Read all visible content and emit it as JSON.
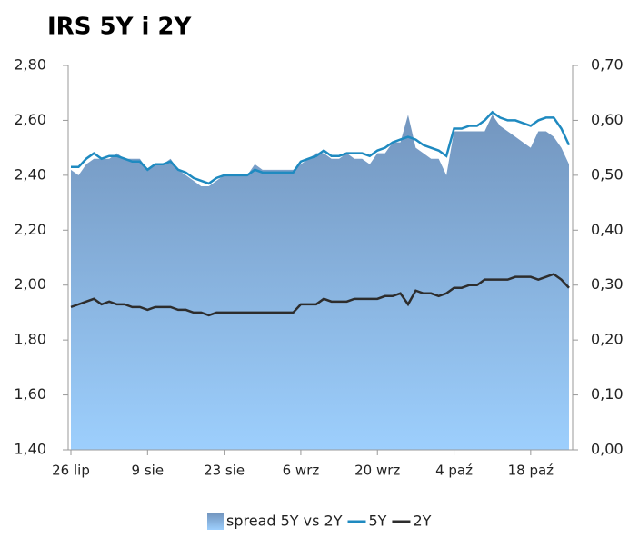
{
  "chart_data": {
    "type": "line",
    "title": "IRS 5Y i 2Y",
    "categories": [
      "26 lip",
      null,
      null,
      null,
      null,
      null,
      null,
      null,
      null,
      null,
      "9 sie",
      null,
      null,
      null,
      null,
      null,
      null,
      null,
      null,
      null,
      "23 sie",
      null,
      null,
      null,
      null,
      null,
      null,
      null,
      null,
      null,
      "6 wrz",
      null,
      null,
      null,
      null,
      null,
      null,
      null,
      null,
      null,
      "20 wrz",
      null,
      null,
      null,
      null,
      null,
      null,
      null,
      null,
      null,
      "4 paź",
      null,
      null,
      null,
      null,
      null,
      null,
      null,
      null,
      null,
      "18 paź",
      null,
      null,
      null,
      null,
      null
    ],
    "series": [
      {
        "name": "spread 5Y vs 2Y",
        "type": "area",
        "axis": "y2",
        "color": "#7396bf",
        "values": [
          0.51,
          0.5,
          0.52,
          0.53,
          0.53,
          0.53,
          0.54,
          0.53,
          0.53,
          0.53,
          0.51,
          0.52,
          0.52,
          0.53,
          0.51,
          0.5,
          0.49,
          0.48,
          0.48,
          0.49,
          0.5,
          0.5,
          0.5,
          0.5,
          0.52,
          0.51,
          0.51,
          0.51,
          0.51,
          0.51,
          0.52,
          0.53,
          0.54,
          0.54,
          0.53,
          0.53,
          0.54,
          0.53,
          0.53,
          0.52,
          0.54,
          0.54,
          0.56,
          0.56,
          0.61,
          0.55,
          0.54,
          0.53,
          0.53,
          0.5,
          0.58,
          0.58,
          0.58,
          0.58,
          0.58,
          0.61,
          0.59,
          0.58,
          0.57,
          0.56,
          0.55,
          0.58,
          0.58,
          0.57,
          0.55,
          0.52
        ]
      },
      {
        "name": "5Y",
        "type": "line",
        "color": "#1f8ac0",
        "values": [
          2.43,
          2.43,
          2.46,
          2.48,
          2.46,
          2.47,
          2.47,
          2.46,
          2.45,
          2.45,
          2.42,
          2.44,
          2.44,
          2.45,
          2.42,
          2.41,
          2.39,
          2.38,
          2.37,
          2.39,
          2.4,
          2.4,
          2.4,
          2.4,
          2.42,
          2.41,
          2.41,
          2.41,
          2.41,
          2.41,
          2.45,
          2.46,
          2.47,
          2.49,
          2.47,
          2.47,
          2.48,
          2.48,
          2.48,
          2.47,
          2.49,
          2.5,
          2.52,
          2.53,
          2.54,
          2.53,
          2.51,
          2.5,
          2.49,
          2.47,
          2.57,
          2.57,
          2.58,
          2.58,
          2.6,
          2.63,
          2.61,
          2.6,
          2.6,
          2.59,
          2.58,
          2.6,
          2.61,
          2.61,
          2.57,
          2.51
        ]
      },
      {
        "name": "2Y",
        "type": "line",
        "color": "#2d2d2d",
        "values": [
          1.92,
          1.93,
          1.94,
          1.95,
          1.93,
          1.94,
          1.93,
          1.93,
          1.92,
          1.92,
          1.91,
          1.92,
          1.92,
          1.92,
          1.91,
          1.91,
          1.9,
          1.9,
          1.89,
          1.9,
          1.9,
          1.9,
          1.9,
          1.9,
          1.9,
          1.9,
          1.9,
          1.9,
          1.9,
          1.9,
          1.93,
          1.93,
          1.93,
          1.95,
          1.94,
          1.94,
          1.94,
          1.95,
          1.95,
          1.95,
          1.95,
          1.96,
          1.96,
          1.97,
          1.93,
          1.98,
          1.97,
          1.97,
          1.96,
          1.97,
          1.99,
          1.99,
          2.0,
          2.0,
          2.02,
          2.02,
          2.02,
          2.02,
          2.03,
          2.03,
          2.03,
          2.02,
          2.03,
          2.04,
          2.02,
          1.99
        ]
      }
    ],
    "ylim": [
      1.4,
      2.8
    ],
    "yticks": [
      {
        "value": 1.4,
        "label": "1,40"
      },
      {
        "value": 1.6,
        "label": "1,60"
      },
      {
        "value": 1.8,
        "label": "1,80"
      },
      {
        "value": 2.0,
        "label": "2,00"
      },
      {
        "value": 2.2,
        "label": "2,20"
      },
      {
        "value": 2.4,
        "label": "2,40"
      },
      {
        "value": 2.6,
        "label": "2,60"
      },
      {
        "value": 2.8,
        "label": "2,80"
      }
    ],
    "y2lim": [
      0,
      0.7
    ],
    "y2ticks": [
      {
        "value": 0,
        "label": "0,00"
      },
      {
        "value": 0.1,
        "label": "0,10"
      },
      {
        "value": 0.2,
        "label": "0,20"
      },
      {
        "value": 0.3,
        "label": "0,30"
      },
      {
        "value": 0.4,
        "label": "0,40"
      },
      {
        "value": 0.5,
        "label": "0,50"
      },
      {
        "value": 0.6,
        "label": "0,60"
      },
      {
        "value": 0.7,
        "label": "0,70"
      }
    ],
    "grid": false,
    "legend": "bottom"
  }
}
